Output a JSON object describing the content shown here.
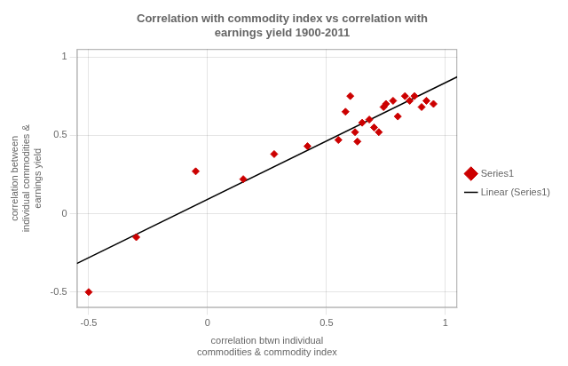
{
  "chart_data": {
    "type": "scatter",
    "title": "Correlation with commodity index vs correlation with\nearnings yield 1900-2011",
    "x_label": "correlation btwn individual\ncommodities & commodity index",
    "y_label": "correlation between\nindividual commodities &\nearnings yield",
    "series": [
      {
        "name": "Series1",
        "type": "scatter",
        "marker": "diamond",
        "color": "#cc0000",
        "x": [
          -0.5,
          -0.3,
          -0.05,
          0.15,
          0.28,
          0.42,
          0.55,
          0.58,
          0.6,
          0.62,
          0.63,
          0.65,
          0.68,
          0.7,
          0.72,
          0.74,
          0.75,
          0.78,
          0.8,
          0.83,
          0.85,
          0.87,
          0.9,
          0.92,
          0.95
        ],
        "values": [
          -0.5,
          -0.15,
          0.27,
          0.22,
          0.38,
          0.43,
          0.47,
          0.65,
          0.75,
          0.52,
          0.46,
          0.58,
          0.6,
          0.55,
          0.52,
          0.68,
          0.7,
          0.72,
          0.62,
          0.75,
          0.72,
          0.75,
          0.68,
          0.72,
          0.7
        ]
      },
      {
        "name": "Linear (Series1)",
        "type": "line",
        "line_style": "solid",
        "color": "#000000",
        "x": [
          -0.55,
          1.05
        ],
        "values": [
          -0.3176,
          0.8725
        ]
      }
    ],
    "xlim": [
      -0.55,
      1.05
    ],
    "ylim": [
      -0.6,
      1.05
    ],
    "xticks": [
      -0.5,
      0,
      0.5,
      1
    ],
    "yticks": [
      -0.5,
      0,
      0.5,
      1
    ],
    "grid": true,
    "legend": "right"
  }
}
